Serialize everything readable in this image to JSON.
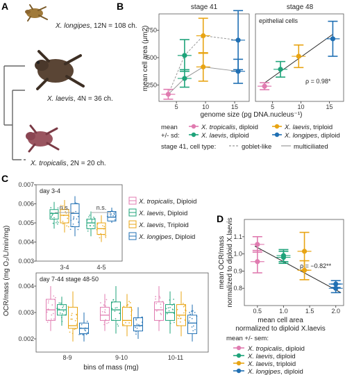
{
  "panel_letters": {
    "a": "A",
    "b": "B",
    "c": "C",
    "d": "D"
  },
  "colors": {
    "tropicalis": "#e07bb0",
    "laevis_dip": "#1ea37a",
    "laevis_trip": "#e8a413",
    "longipes": "#1f6fb3",
    "fit": "#222222"
  },
  "panel_a": {
    "species": [
      {
        "name": "X. longipes",
        "rest": ", 12N = 108 ch.",
        "icon": "frog-icon"
      },
      {
        "name": "X. laevis",
        "rest": ", 4N = 36 ch.",
        "icon": "frog-icon"
      },
      {
        "name": "X. tropicalis",
        "rest": ", 2N = 20 ch.",
        "icon": "frog-icon"
      }
    ]
  },
  "panel_b": {
    "xlabel": "genome size (pg DNA.nucleus⁻¹)",
    "ylabel": "mean cell area (μm2)",
    "legend": {
      "mean_line1": "mean",
      "mean_line2": "+/- sd:",
      "items": [
        {
          "label": "X. tropicalis",
          "suffix": ", diploid",
          "color": "#e07bb0"
        },
        {
          "label": "X. laevis",
          "suffix": ", triploid",
          "color": "#e8a413"
        },
        {
          "label": "X. laevis",
          "suffix": ", diploid",
          "color": "#1ea37a"
        },
        {
          "label": "X. longipes",
          "suffix": ", diploid",
          "color": "#1f6fb3"
        }
      ],
      "celltype_prefix": "stage 41, cell type:",
      "celltype_dashed": "goblet-like",
      "celltype_solid": "multiciliated"
    }
  },
  "panel_c": {
    "ylabel": "OCR/mass (mg O₂/L/min/mg)",
    "xlabel": "bins of mass (mg)",
    "legend": [
      {
        "label": "X. tropicalis",
        "suffix": ", Diploid",
        "color": "#e07bb0"
      },
      {
        "label": "X. laevis",
        "suffix": ", Diploid",
        "color": "#1ea37a"
      },
      {
        "label": "X. laevis",
        "suffix": ", Triploid",
        "color": "#e8a413"
      },
      {
        "label": "X. longipes",
        "suffix": ", Diploid",
        "color": "#1f6fb3"
      }
    ]
  },
  "panel_d": {
    "ylabel_1": "mean OCR/mass",
    "ylabel_2": "normalized to diploid X.laevis",
    "xlabel_1": "mean cell area",
    "xlabel_2": "normalized to diploid X.laevis",
    "legend_title": "mean +/- sem:",
    "legend": [
      {
        "label": "X. tropicalis",
        "suffix": ", diploid",
        "color": "#e07bb0"
      },
      {
        "label": "X. laevis",
        "suffix": ", diploid",
        "color": "#1ea37a"
      },
      {
        "label": "X. laevis",
        "suffix": ", triploid",
        "color": "#e8a413"
      },
      {
        "label": "X. longipes",
        "suffix": ", diploid",
        "color": "#1f6fb3"
      }
    ]
  },
  "chart_data": [
    {
      "id": "B-left",
      "type": "scatter",
      "title": "stage 41",
      "xlim": [
        2,
        17.5
      ],
      "ylim": [
        100,
        900
      ],
      "xticks": [
        5,
        10,
        15
      ],
      "yticks": [
        250,
        500,
        750
      ],
      "series": [
        {
          "name": "X. tropicalis",
          "x": 3.6,
          "y": 165,
          "sd": 45,
          "color": "#e07bb0"
        },
        {
          "name": "X. laevis",
          "x": 6.4,
          "y": 520,
          "sd": 145,
          "color": "#1ea37a"
        },
        {
          "name": "X. laevis",
          "x": 6.4,
          "y": 310,
          "sd": 80,
          "color": "#1ea37a"
        },
        {
          "name": "X. laevis",
          "x": 9.6,
          "y": 700,
          "sd": 160,
          "color": "#e8a413"
        },
        {
          "name": "X. laevis",
          "x": 9.6,
          "y": 415,
          "sd": 130,
          "color": "#e8a413"
        },
        {
          "name": "X. longipes",
          "x": 15.6,
          "y": 660,
          "sd": 270,
          "color": "#1f6fb3"
        },
        {
          "name": "X. longipes",
          "x": 15.6,
          "y": 375,
          "sd": 110,
          "color": "#1f6fb3"
        }
      ]
    },
    {
      "id": "B-right",
      "type": "scatter",
      "title": "stage 48",
      "annotation": "epithelial cells",
      "rho": "ρ = 0.98*",
      "xlim": [
        2,
        17.5
      ],
      "ylim": [
        0,
        450
      ],
      "xticks": [
        5,
        10,
        15
      ],
      "series": [
        {
          "name": "X. tropicalis",
          "x": 3.6,
          "y": 78,
          "sd": 18,
          "color": "#e07bb0"
        },
        {
          "name": "X. laevis",
          "x": 6.4,
          "y": 165,
          "sd": 40,
          "color": "#1ea37a"
        },
        {
          "name": "X. laevis",
          "x": 9.6,
          "y": 232,
          "sd": 58,
          "color": "#e8a413"
        },
        {
          "name": "X. longipes",
          "x": 15.6,
          "y": 322,
          "sd": 90,
          "color": "#1f6fb3"
        }
      ],
      "fit": {
        "x": [
          3.6,
          15.6
        ],
        "y": [
          95,
          345
        ]
      }
    },
    {
      "id": "C-top",
      "type": "box",
      "title": "day 3-4",
      "ylim": [
        0.003,
        0.007
      ],
      "yticks": [
        0.003,
        0.004,
        0.005,
        0.006,
        0.007
      ],
      "categories": [
        "3-4",
        "4-5"
      ],
      "annotations": [
        "n.s.",
        "n.s."
      ],
      "series": [
        {
          "name": "X. laevis, Diploid",
          "color": "#1ea37a",
          "boxes": [
            [
              0.0047,
              0.0052,
              0.0055,
              0.0057,
              0.0061
            ],
            [
              0.0043,
              0.0047,
              0.005,
              0.0052,
              0.0056
            ]
          ]
        },
        {
          "name": "X. laevis, Triploid",
          "color": "#e8a413",
          "boxes": [
            [
              0.0045,
              0.005,
              0.0054,
              0.0057,
              0.0062
            ],
            [
              0.004,
              0.0044,
              0.0047,
              0.005,
              0.0054
            ]
          ]
        },
        {
          "name": "X. longipes, Diploid",
          "color": "#1f6fb3",
          "boxes": [
            [
              0.0043,
              0.0048,
              0.0055,
              0.006,
              0.0064
            ],
            [
              0.005,
              0.0051,
              0.0053,
              0.0056,
              0.0058
            ]
          ]
        }
      ]
    },
    {
      "id": "C-bottom",
      "type": "box",
      "title": "day 7-44 stage 48-50",
      "ylim": [
        0.0015,
        0.0045
      ],
      "yticks": [
        0.002,
        0.003,
        0.004
      ],
      "categories": [
        "8-9",
        "9-10",
        "10-11"
      ],
      "series": [
        {
          "name": "X. tropicalis, Diploid",
          "color": "#e07bb0",
          "boxes": [
            [
              0.0023,
              0.0027,
              0.0031,
              0.0035,
              0.004
            ],
            [
              0.0023,
              0.0027,
              0.0029,
              0.0032,
              0.0037
            ],
            [
              0.0023,
              0.0027,
              0.0031,
              0.0034,
              0.004
            ]
          ]
        },
        {
          "name": "X. laevis, Diploid",
          "color": "#1ea37a",
          "boxes": [
            [
              0.0025,
              0.0029,
              0.0031,
              0.0033,
              0.0036
            ],
            [
              0.0022,
              0.0027,
              0.0031,
              0.0034,
              0.004
            ],
            [
              0.0022,
              0.0027,
              0.003,
              0.0033,
              0.0038
            ]
          ]
        },
        {
          "name": "X. laevis, Triploid",
          "color": "#e8a413",
          "boxes": [
            [
              0.0019,
              0.0024,
              0.0025,
              0.0032,
              0.0038
            ],
            [
              0.0021,
              0.0025,
              0.0027,
              0.0032,
              0.0037
            ],
            [
              0.0021,
              0.0025,
              0.0029,
              0.0033,
              0.0038
            ]
          ]
        },
        {
          "name": "X. longipes, Diploid",
          "color": "#1f6fb3",
          "boxes": [
            [
              0.0019,
              0.0022,
              0.0024,
              0.0026,
              0.003
            ],
            [
              0.002,
              0.0023,
              0.0025,
              0.0028,
              0.0032
            ],
            [
              0.0019,
              0.0022,
              0.0026,
              0.0029,
              0.0033
            ]
          ]
        }
      ]
    },
    {
      "id": "D",
      "type": "scatter",
      "rho": "ρ = −0.82**",
      "xlim": [
        0.25,
        2.15
      ],
      "ylim": [
        0.7,
        1.2
      ],
      "xticks": [
        0.5,
        1.0,
        1.5,
        2.0
      ],
      "yticks": [
        0.8,
        0.9,
        1.0,
        1.1
      ],
      "series": [
        {
          "name": "X. tropicalis, diploid",
          "x": 0.5,
          "y": 1.055,
          "sem": 0.045,
          "color": "#e07bb0"
        },
        {
          "name": "X. tropicalis, diploid",
          "x": 0.5,
          "y": 0.955,
          "sem": 0.065,
          "color": "#e07bb0"
        },
        {
          "name": "X. laevis, diploid",
          "x": 1.0,
          "y": 0.99,
          "sem": 0.035,
          "color": "#1ea37a"
        },
        {
          "name": "X. laevis, diploid",
          "x": 1.0,
          "y": 0.98,
          "sem": 0.035,
          "color": "#1ea37a"
        },
        {
          "name": "X. laevis, triploid",
          "x": 1.4,
          "y": 1.015,
          "sem": 0.11,
          "color": "#e8a413"
        },
        {
          "name": "X. laevis, triploid",
          "x": 1.4,
          "y": 0.905,
          "sem": 0.055,
          "color": "#e8a413"
        },
        {
          "name": "X. longipes, diploid",
          "x": 2.0,
          "y": 0.825,
          "sem": 0.02,
          "color": "#1f6fb3"
        },
        {
          "name": "X. longipes, diploid",
          "x": 2.0,
          "y": 0.8,
          "sem": 0.025,
          "color": "#1f6fb3"
        }
      ],
      "fit": {
        "x": [
          0.45,
          2.1
        ],
        "y": [
          1.045,
          0.775
        ]
      }
    }
  ]
}
